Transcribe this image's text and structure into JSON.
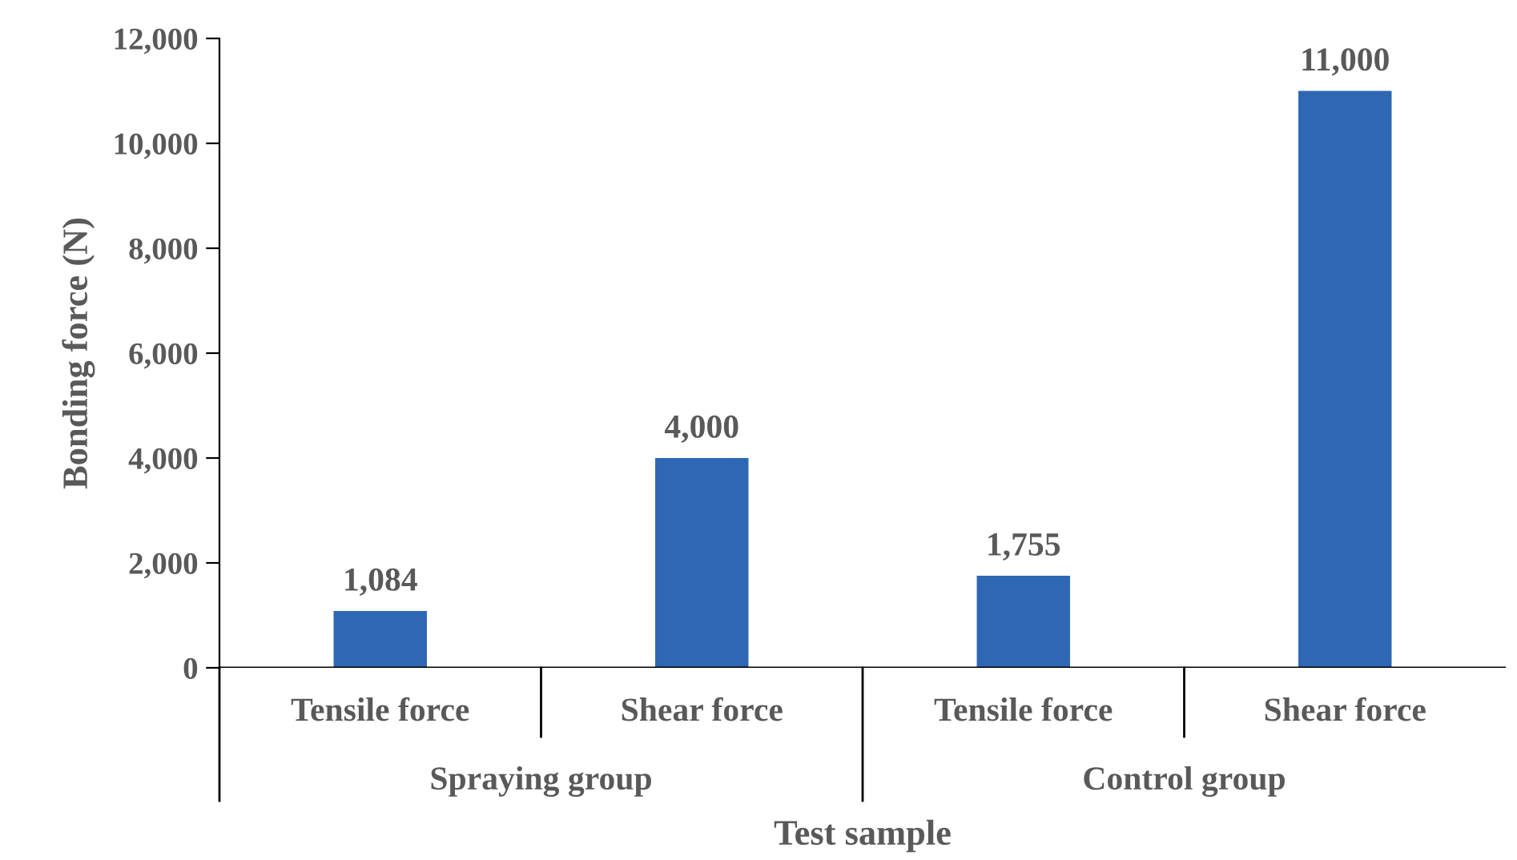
{
  "chart_data": {
    "type": "bar",
    "xlabel": "Test sample",
    "ylabel": "Bonding force (N)",
    "categories": [
      "Tensile force",
      "Shear force",
      "Tensile force",
      "Shear force"
    ],
    "values": [
      1084,
      4000,
      1755,
      11000
    ],
    "color": "#2e67b4",
    "value_labels": [
      "1,084",
      "4,000",
      "1,755",
      "11,000"
    ],
    "annotations": [
      "Spraying group",
      "Control group"
    ],
    "ylim": [
      0,
      12000
    ],
    "yticks": [
      {
        "value": 0,
        "label": "0"
      },
      {
        "value": 2000,
        "label": "2,000"
      },
      {
        "value": 4000,
        "label": "4,000"
      },
      {
        "value": 6000,
        "label": "6,000"
      },
      {
        "value": 8000,
        "label": "8,000"
      },
      {
        "value": 10000,
        "label": "10,000"
      },
      {
        "value": 12000,
        "label": "12,000"
      }
    ],
    "grid": false
  }
}
